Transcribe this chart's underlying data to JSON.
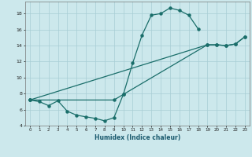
{
  "title": "",
  "xlabel": "Humidex (Indice chaleur)",
  "bg_color": "#cce8ec",
  "grid_color": "#a8cdd4",
  "line_color": "#1a6e6a",
  "xlim": [
    -0.5,
    23.5
  ],
  "ylim": [
    4,
    19.5
  ],
  "xticks": [
    0,
    1,
    2,
    3,
    4,
    5,
    6,
    7,
    8,
    9,
    10,
    11,
    12,
    13,
    14,
    15,
    16,
    17,
    18,
    19,
    20,
    21,
    22,
    23
  ],
  "yticks": [
    4,
    6,
    8,
    10,
    12,
    14,
    16,
    18
  ],
  "line1_x": [
    0,
    1,
    2,
    3,
    4,
    5,
    6,
    7,
    8,
    9,
    10,
    11,
    12,
    13,
    14,
    15,
    16,
    17,
    18
  ],
  "line1_y": [
    7.2,
    7.0,
    6.5,
    7.1,
    5.8,
    5.3,
    5.1,
    4.9,
    4.6,
    5.0,
    7.9,
    11.8,
    15.3,
    17.8,
    18.0,
    18.7,
    18.4,
    17.8,
    16.1
  ],
  "line2_x": [
    0,
    19,
    20,
    21,
    22,
    23
  ],
  "line2_y": [
    7.2,
    14.1,
    14.1,
    14.0,
    14.2,
    15.1
  ],
  "line3_x": [
    0,
    9,
    10,
    19,
    20,
    21,
    22,
    23
  ],
  "line3_y": [
    7.2,
    7.2,
    7.9,
    14.1,
    14.1,
    14.0,
    14.2,
    15.1
  ]
}
